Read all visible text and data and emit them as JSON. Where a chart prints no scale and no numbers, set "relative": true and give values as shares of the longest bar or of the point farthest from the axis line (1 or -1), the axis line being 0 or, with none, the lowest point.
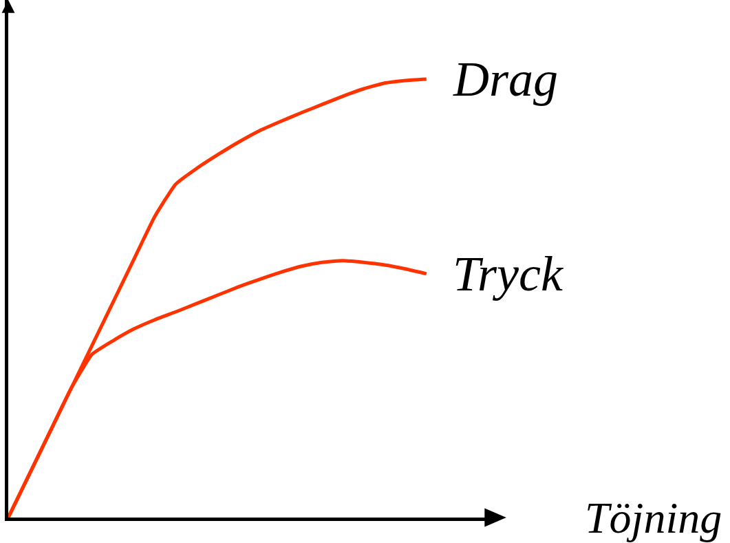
{
  "chart_data": {
    "type": "line",
    "relative": true,
    "xlabel": "Töjning",
    "categories": [
      null,
      null,
      null,
      null,
      null,
      null,
      null,
      null,
      null,
      null,
      null,
      null,
      null,
      null,
      null,
      null,
      null,
      null,
      null,
      null,
      null
    ],
    "series": [
      {
        "name": "Drag",
        "color": "#ff3300",
        "values": [
          0,
          0.098,
          0.196,
          0.294,
          0.392,
          0.49,
          0.588,
          0.686,
          0.76,
          0.796,
          0.827,
          0.856,
          0.882,
          0.903,
          0.923,
          0.942,
          0.961,
          0.978,
          0.991,
          0.997,
          1
        ]
      },
      {
        "name": "Tryck",
        "color": "#ff3300",
        "values": [
          0,
          0.098,
          0.196,
          0.294,
          0.372,
          0.403,
          0.43,
          0.451,
          0.469,
          0.488,
          0.507,
          0.526,
          0.543,
          0.559,
          0.573,
          0.582,
          0.586,
          0.582,
          0.576,
          0.567,
          0.556
        ]
      }
    ],
    "legend": false,
    "marker": "none",
    "line_style": "solid"
  }
}
